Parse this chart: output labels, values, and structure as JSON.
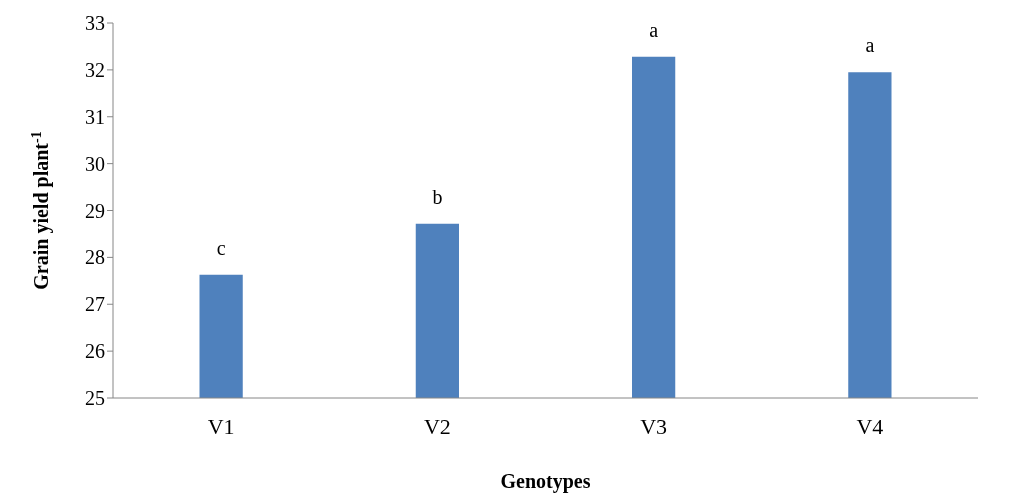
{
  "chart_data": {
    "type": "bar",
    "xlabel": "Genotypes",
    "ylabel": "Grain yield plant$^{-1}$",
    "categories": [
      "V1",
      "V2",
      "V3",
      "V4"
    ],
    "values": [
      27.63,
      28.72,
      32.28,
      31.95
    ],
    "color": "#4f81bd",
    "ylim": [
      25,
      33
    ],
    "yticks": [
      25,
      26,
      27,
      28,
      29,
      30,
      31,
      32,
      33
    ],
    "grid": false,
    "legend": false,
    "annotations": [
      {
        "text": "c",
        "x": "V1",
        "y": 27.63
      },
      {
        "text": "b",
        "x": "V2",
        "y": 28.72
      },
      {
        "text": "a",
        "x": "V3",
        "y": 32.28
      },
      {
        "text": "a",
        "x": "V4",
        "y": 31.95
      }
    ]
  }
}
